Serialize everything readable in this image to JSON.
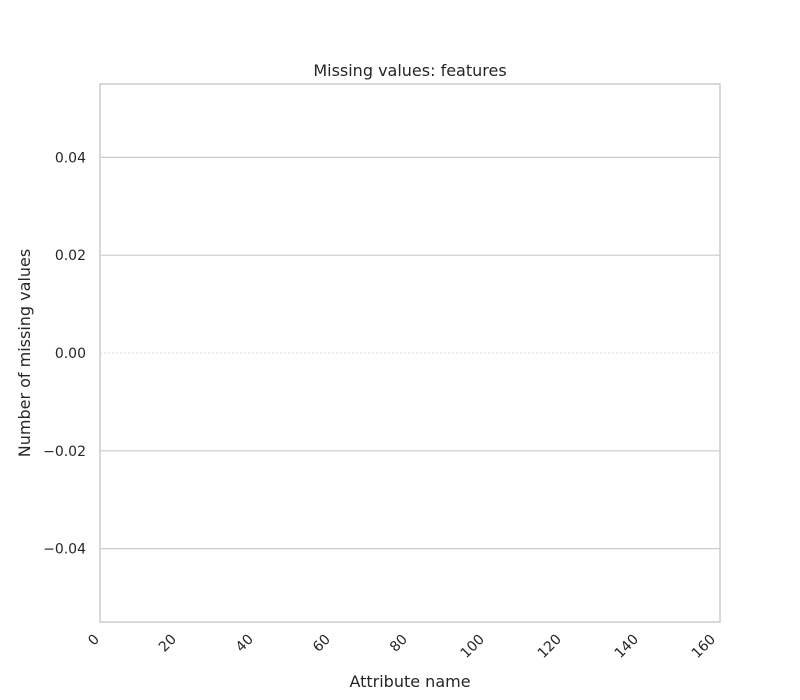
{
  "chart_data": {
    "type": "bar",
    "title": "Missing values: features",
    "xlabel": "Attribute name",
    "ylabel": "Number of missing values",
    "x_ticks": [
      "0",
      "20",
      "40",
      "60",
      "80",
      "100",
      "120",
      "140",
      "160"
    ],
    "x_tick_values": [
      0,
      20,
      40,
      60,
      80,
      100,
      120,
      140,
      160
    ],
    "xlim": [
      0,
      161
    ],
    "y_ticks": [
      "0.04",
      "0.02",
      "0.00",
      "−0.02",
      "−0.04"
    ],
    "y_tick_values": [
      0.04,
      0.02,
      0.0,
      -0.02,
      -0.04
    ],
    "ylim": [
      -0.055,
      0.055
    ],
    "x_tick_rotation": 45,
    "grid": true,
    "grid_axis": "y",
    "categories": [],
    "values": [],
    "colors": {
      "grid": "#cccccc",
      "frame": "#cccccc",
      "text": "#262626",
      "zero_line": "#dddddd"
    }
  }
}
